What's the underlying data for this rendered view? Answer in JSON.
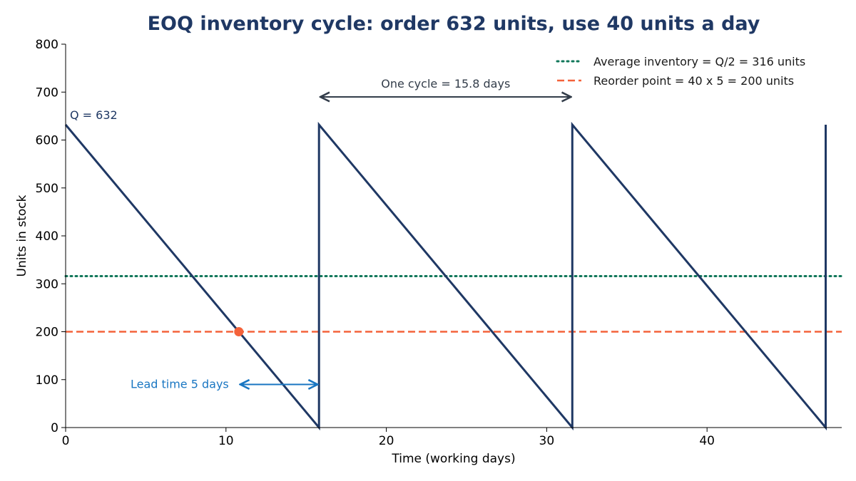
{
  "colors": {
    "inventory": "#1f3864",
    "average": "#11775a",
    "reorder": "#f4623a",
    "lead": "#1976c2",
    "cycle": "#333d4a",
    "title": "#1f3864"
  },
  "chart_data": {
    "type": "line",
    "title": "EOQ inventory cycle: order 632 units, use 40 units a day",
    "xlabel": "Time (working days)",
    "ylabel": "Units in stock",
    "xlim": [
      0,
      48.4
    ],
    "ylim": [
      0,
      800
    ],
    "xticks": [
      0,
      10,
      20,
      30,
      40
    ],
    "yticks": [
      0,
      100,
      200,
      300,
      400,
      500,
      600,
      700,
      800
    ],
    "grid": false,
    "legend_position": "top-right",
    "series": [
      {
        "key": "inventory",
        "x": [
          0,
          15.8,
          15.8,
          31.6,
          31.6,
          47.4,
          47.4
        ],
        "y": [
          632,
          0,
          632,
          0,
          632,
          0,
          632
        ]
      }
    ],
    "reference_lines": [
      {
        "key": "average",
        "name": "Average inventory = Q/2 = 316 units",
        "y": 316,
        "style": "dotted"
      },
      {
        "key": "reorder",
        "name": "Reorder point = 40 x 5 = 200 units",
        "y": 200,
        "style": "dashed"
      }
    ],
    "reorder_marker": {
      "x": 10.8,
      "y": 200
    },
    "annotations": {
      "q_label": {
        "text": "Q = 632",
        "x": 0,
        "y": 632
      },
      "cycle": {
        "text": "One cycle = 15.8 days",
        "x_from": 15.8,
        "x_to": 31.6,
        "y": 690
      },
      "lead": {
        "text": "Lead time 5 days",
        "x_from": 10.8,
        "x_to": 15.8,
        "y": 90
      }
    }
  }
}
